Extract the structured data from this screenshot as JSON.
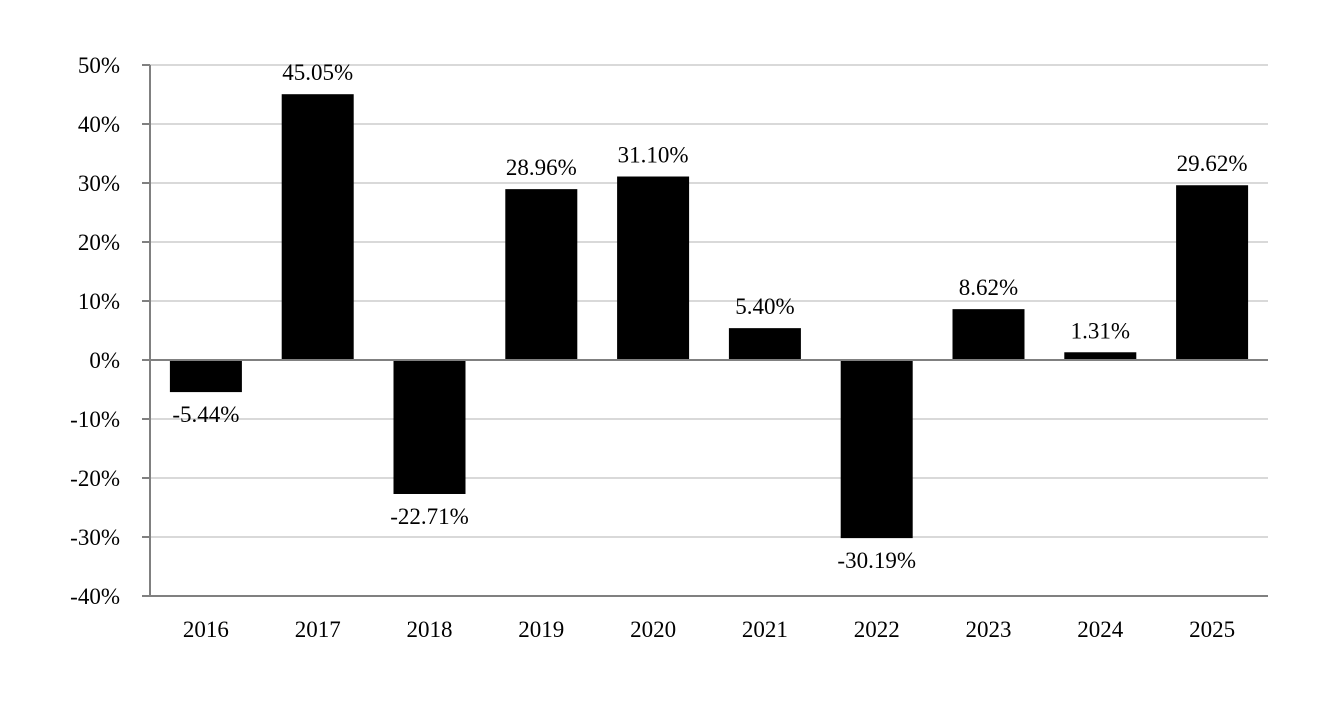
{
  "chart_data": {
    "type": "bar",
    "categories": [
      "2016",
      "2017",
      "2018",
      "2019",
      "2020",
      "2021",
      "2022",
      "2023",
      "2024",
      "2025"
    ],
    "values": [
      -5.44,
      45.05,
      -22.71,
      28.96,
      31.1,
      5.4,
      -30.19,
      8.62,
      1.31,
      29.62
    ],
    "data_labels": [
      "-5.44%",
      "45.05%",
      "-22.71%",
      "28.96%",
      "31.10%",
      "5.40%",
      "-30.19%",
      "8.62%",
      "1.31%",
      "29.62%"
    ],
    "title": "",
    "xlabel": "",
    "ylabel": "",
    "ylim": [
      -40,
      50
    ],
    "yticks": [
      50,
      40,
      30,
      20,
      10,
      0,
      -10,
      -20,
      -30,
      -40
    ],
    "ytick_labels": [
      "50%",
      "40%",
      "30%",
      "20%",
      "10%",
      "0%",
      "-10%",
      "-20%",
      "-30%",
      "-40%"
    ],
    "grid": true,
    "legend": "none",
    "bar_color": "#000000",
    "grid_color": "#d9d9d9",
    "axis_color": "#808080"
  }
}
